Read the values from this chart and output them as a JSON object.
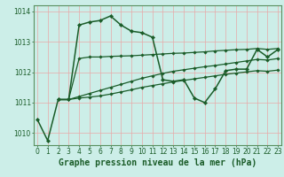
{
  "title": "Graphe pression niveau de la mer (hPa)",
  "bg_color": "#cceee8",
  "grid_color": "#e8a8a8",
  "line_color": "#1a5c28",
  "ylim": [
    1009.6,
    1014.2
  ],
  "xlim": [
    -0.3,
    23.3
  ],
  "yticks": [
    1010,
    1011,
    1012,
    1013,
    1014
  ],
  "xticks": [
    0,
    1,
    2,
    3,
    4,
    5,
    6,
    7,
    8,
    9,
    10,
    11,
    12,
    13,
    14,
    15,
    16,
    17,
    18,
    19,
    20,
    21,
    22,
    23
  ],
  "series": [
    {
      "x": [
        0,
        1,
        2,
        3,
        4,
        5,
        6,
        7,
        8,
        9,
        10,
        11,
        12,
        13,
        14,
        15,
        16,
        17,
        18,
        19,
        20,
        21,
        22,
        23
      ],
      "y": [
        1010.45,
        1009.75,
        1011.1,
        1011.1,
        1013.55,
        1013.65,
        1013.7,
        1013.85,
        1013.55,
        1013.35,
        1013.3,
        1013.15,
        1011.75,
        1011.7,
        1011.75,
        1011.15,
        1011.0,
        1011.45,
        1012.05,
        1012.1,
        1012.1,
        1012.75,
        1012.5,
        1012.75
      ],
      "marker": "D",
      "markersize": 2.2,
      "linewidth": 1.1
    },
    {
      "x": [
        2,
        3,
        4,
        5,
        6,
        7,
        8,
        9,
        10,
        11,
        12,
        13,
        14,
        15,
        16,
        17,
        18,
        19,
        20,
        21,
        22,
        23
      ],
      "y": [
        1011.1,
        1011.1,
        1012.45,
        1012.5,
        1012.5,
        1012.52,
        1012.53,
        1012.54,
        1012.56,
        1012.58,
        1012.6,
        1012.62,
        1012.63,
        1012.65,
        1012.67,
        1012.7,
        1012.72,
        1012.74,
        1012.75,
        1012.78,
        1012.75,
        1012.78
      ],
      "marker": "D",
      "markersize": 1.8,
      "linewidth": 0.9
    },
    {
      "x": [
        2,
        3,
        4,
        5,
        6,
        7,
        8,
        9,
        10,
        11,
        12,
        13,
        14,
        15,
        16,
        17,
        18,
        19,
        20,
        21,
        22,
        23
      ],
      "y": [
        1011.1,
        1011.1,
        1011.2,
        1011.3,
        1011.4,
        1011.5,
        1011.6,
        1011.7,
        1011.8,
        1011.88,
        1011.96,
        1012.03,
        1012.08,
        1012.13,
        1012.18,
        1012.22,
        1012.27,
        1012.32,
        1012.37,
        1012.42,
        1012.4,
        1012.45
      ],
      "marker": "D",
      "markersize": 1.8,
      "linewidth": 0.9
    },
    {
      "x": [
        2,
        3,
        4,
        5,
        6,
        7,
        8,
        9,
        10,
        11,
        12,
        13,
        14,
        15,
        16,
        17,
        18,
        19,
        20,
        21,
        22,
        23
      ],
      "y": [
        1011.1,
        1011.1,
        1011.15,
        1011.18,
        1011.22,
        1011.28,
        1011.35,
        1011.42,
        1011.5,
        1011.56,
        1011.62,
        1011.68,
        1011.73,
        1011.78,
        1011.83,
        1011.88,
        1011.93,
        1011.97,
        1012.01,
        1012.05,
        1012.03,
        1012.07
      ],
      "marker": "D",
      "markersize": 1.8,
      "linewidth": 0.9
    }
  ],
  "title_fontsize": 7,
  "tick_fontsize": 5.5,
  "title_color": "#1a5c28",
  "tick_color": "#1a5c28",
  "axis_color": "#1a5c28",
  "spine_color": "#5a9060"
}
